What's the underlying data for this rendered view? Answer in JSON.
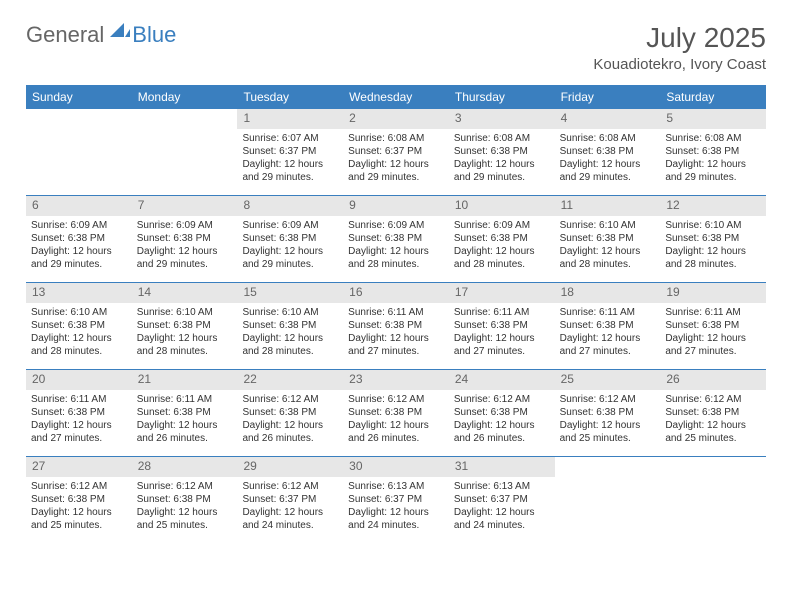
{
  "brand": {
    "part1": "General",
    "part2": "Blue"
  },
  "colors": {
    "accent": "#3a7fbf",
    "daynum_bg": "#e7e7e7",
    "text": "#333333",
    "muted": "#666666",
    "bg": "#ffffff"
  },
  "typography": {
    "title_fontsize": 28,
    "location_fontsize": 15,
    "dow_fontsize": 12,
    "daynum_fontsize": 12,
    "body_fontsize": 10
  },
  "title": "July 2025",
  "location": "Kouadiotekro, Ivory Coast",
  "dow": [
    "Sunday",
    "Monday",
    "Tuesday",
    "Wednesday",
    "Thursday",
    "Friday",
    "Saturday"
  ],
  "weeks": [
    [
      null,
      null,
      {
        "n": "1",
        "sunrise": "Sunrise: 6:07 AM",
        "sunset": "Sunset: 6:37 PM",
        "day1": "Daylight: 12 hours",
        "day2": "and 29 minutes."
      },
      {
        "n": "2",
        "sunrise": "Sunrise: 6:08 AM",
        "sunset": "Sunset: 6:37 PM",
        "day1": "Daylight: 12 hours",
        "day2": "and 29 minutes."
      },
      {
        "n": "3",
        "sunrise": "Sunrise: 6:08 AM",
        "sunset": "Sunset: 6:38 PM",
        "day1": "Daylight: 12 hours",
        "day2": "and 29 minutes."
      },
      {
        "n": "4",
        "sunrise": "Sunrise: 6:08 AM",
        "sunset": "Sunset: 6:38 PM",
        "day1": "Daylight: 12 hours",
        "day2": "and 29 minutes."
      },
      {
        "n": "5",
        "sunrise": "Sunrise: 6:08 AM",
        "sunset": "Sunset: 6:38 PM",
        "day1": "Daylight: 12 hours",
        "day2": "and 29 minutes."
      }
    ],
    [
      {
        "n": "6",
        "sunrise": "Sunrise: 6:09 AM",
        "sunset": "Sunset: 6:38 PM",
        "day1": "Daylight: 12 hours",
        "day2": "and 29 minutes."
      },
      {
        "n": "7",
        "sunrise": "Sunrise: 6:09 AM",
        "sunset": "Sunset: 6:38 PM",
        "day1": "Daylight: 12 hours",
        "day2": "and 29 minutes."
      },
      {
        "n": "8",
        "sunrise": "Sunrise: 6:09 AM",
        "sunset": "Sunset: 6:38 PM",
        "day1": "Daylight: 12 hours",
        "day2": "and 29 minutes."
      },
      {
        "n": "9",
        "sunrise": "Sunrise: 6:09 AM",
        "sunset": "Sunset: 6:38 PM",
        "day1": "Daylight: 12 hours",
        "day2": "and 28 minutes."
      },
      {
        "n": "10",
        "sunrise": "Sunrise: 6:09 AM",
        "sunset": "Sunset: 6:38 PM",
        "day1": "Daylight: 12 hours",
        "day2": "and 28 minutes."
      },
      {
        "n": "11",
        "sunrise": "Sunrise: 6:10 AM",
        "sunset": "Sunset: 6:38 PM",
        "day1": "Daylight: 12 hours",
        "day2": "and 28 minutes."
      },
      {
        "n": "12",
        "sunrise": "Sunrise: 6:10 AM",
        "sunset": "Sunset: 6:38 PM",
        "day1": "Daylight: 12 hours",
        "day2": "and 28 minutes."
      }
    ],
    [
      {
        "n": "13",
        "sunrise": "Sunrise: 6:10 AM",
        "sunset": "Sunset: 6:38 PM",
        "day1": "Daylight: 12 hours",
        "day2": "and 28 minutes."
      },
      {
        "n": "14",
        "sunrise": "Sunrise: 6:10 AM",
        "sunset": "Sunset: 6:38 PM",
        "day1": "Daylight: 12 hours",
        "day2": "and 28 minutes."
      },
      {
        "n": "15",
        "sunrise": "Sunrise: 6:10 AM",
        "sunset": "Sunset: 6:38 PM",
        "day1": "Daylight: 12 hours",
        "day2": "and 28 minutes."
      },
      {
        "n": "16",
        "sunrise": "Sunrise: 6:11 AM",
        "sunset": "Sunset: 6:38 PM",
        "day1": "Daylight: 12 hours",
        "day2": "and 27 minutes."
      },
      {
        "n": "17",
        "sunrise": "Sunrise: 6:11 AM",
        "sunset": "Sunset: 6:38 PM",
        "day1": "Daylight: 12 hours",
        "day2": "and 27 minutes."
      },
      {
        "n": "18",
        "sunrise": "Sunrise: 6:11 AM",
        "sunset": "Sunset: 6:38 PM",
        "day1": "Daylight: 12 hours",
        "day2": "and 27 minutes."
      },
      {
        "n": "19",
        "sunrise": "Sunrise: 6:11 AM",
        "sunset": "Sunset: 6:38 PM",
        "day1": "Daylight: 12 hours",
        "day2": "and 27 minutes."
      }
    ],
    [
      {
        "n": "20",
        "sunrise": "Sunrise: 6:11 AM",
        "sunset": "Sunset: 6:38 PM",
        "day1": "Daylight: 12 hours",
        "day2": "and 27 minutes."
      },
      {
        "n": "21",
        "sunrise": "Sunrise: 6:11 AM",
        "sunset": "Sunset: 6:38 PM",
        "day1": "Daylight: 12 hours",
        "day2": "and 26 minutes."
      },
      {
        "n": "22",
        "sunrise": "Sunrise: 6:12 AM",
        "sunset": "Sunset: 6:38 PM",
        "day1": "Daylight: 12 hours",
        "day2": "and 26 minutes."
      },
      {
        "n": "23",
        "sunrise": "Sunrise: 6:12 AM",
        "sunset": "Sunset: 6:38 PM",
        "day1": "Daylight: 12 hours",
        "day2": "and 26 minutes."
      },
      {
        "n": "24",
        "sunrise": "Sunrise: 6:12 AM",
        "sunset": "Sunset: 6:38 PM",
        "day1": "Daylight: 12 hours",
        "day2": "and 26 minutes."
      },
      {
        "n": "25",
        "sunrise": "Sunrise: 6:12 AM",
        "sunset": "Sunset: 6:38 PM",
        "day1": "Daylight: 12 hours",
        "day2": "and 25 minutes."
      },
      {
        "n": "26",
        "sunrise": "Sunrise: 6:12 AM",
        "sunset": "Sunset: 6:38 PM",
        "day1": "Daylight: 12 hours",
        "day2": "and 25 minutes."
      }
    ],
    [
      {
        "n": "27",
        "sunrise": "Sunrise: 6:12 AM",
        "sunset": "Sunset: 6:38 PM",
        "day1": "Daylight: 12 hours",
        "day2": "and 25 minutes."
      },
      {
        "n": "28",
        "sunrise": "Sunrise: 6:12 AM",
        "sunset": "Sunset: 6:38 PM",
        "day1": "Daylight: 12 hours",
        "day2": "and 25 minutes."
      },
      {
        "n": "29",
        "sunrise": "Sunrise: 6:12 AM",
        "sunset": "Sunset: 6:37 PM",
        "day1": "Daylight: 12 hours",
        "day2": "and 24 minutes."
      },
      {
        "n": "30",
        "sunrise": "Sunrise: 6:13 AM",
        "sunset": "Sunset: 6:37 PM",
        "day1": "Daylight: 12 hours",
        "day2": "and 24 minutes."
      },
      {
        "n": "31",
        "sunrise": "Sunrise: 6:13 AM",
        "sunset": "Sunset: 6:37 PM",
        "day1": "Daylight: 12 hours",
        "day2": "and 24 minutes."
      },
      null,
      null
    ]
  ]
}
